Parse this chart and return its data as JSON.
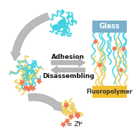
{
  "bg_color": "#ffffff",
  "arrow_color": "#b0b0b0",
  "adhesion_text": "Adhesion",
  "disassembling_text": "Disassembling",
  "glass_label": "Glass",
  "glass_color": "#7ab0cc",
  "fluoropolymer_label": "Fluoropolymer",
  "fluoro_color": "#f0c030",
  "cyan_color": "#40d0e0",
  "yellow_color": "#f0d060",
  "star_color": "#f07858",
  "legend_text": "= Zr",
  "legend_sup": "4+",
  "text_color": "#111111",
  "adhesion_fontsize": 6.5,
  "disassembling_fontsize": 6.5
}
